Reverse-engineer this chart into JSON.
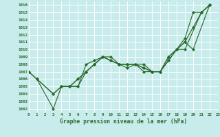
{
  "xlabel": "Graphe pression niveau de la mer (hPa)",
  "bg_color": "#c8ecec",
  "grid_color": "#ffffff",
  "line_color": "#2d6a2d",
  "xlim": [
    0,
    23
  ],
  "ylim": [
    1001.5,
    1016.5
  ],
  "xtick_labels": [
    "0",
    "1",
    "2",
    "3",
    "4",
    "5",
    "6",
    "7",
    "8",
    "9",
    "10",
    "11",
    "12",
    "13",
    "14",
    "15",
    "16",
    "17",
    "18",
    "19",
    "20",
    "21",
    "22",
    "23"
  ],
  "ytick_values": [
    1002,
    1003,
    1004,
    1005,
    1006,
    1007,
    1008,
    1009,
    1010,
    1011,
    1012,
    1013,
    1014,
    1015,
    1016
  ],
  "series": [
    {
      "x": [
        0,
        1,
        3,
        4,
        5,
        6,
        7,
        8,
        9,
        10,
        11,
        12,
        13,
        14,
        15,
        16,
        17,
        18,
        19,
        20,
        21,
        22
      ],
      "y": [
        1007,
        1006,
        1004,
        1005,
        1005,
        1005,
        1008,
        1008.5,
        1009,
        1009,
        1008,
        1008,
        1008,
        1008,
        1007,
        1007,
        1008.5,
        1010,
        1011,
        1013,
        1015,
        1016
      ]
    },
    {
      "x": [
        0,
        1,
        3,
        4,
        5,
        6,
        7,
        8,
        9,
        10,
        11,
        12,
        13,
        14,
        15,
        16,
        17,
        18,
        19,
        20,
        22
      ],
      "y": [
        1007,
        1006,
        1002,
        1005,
        1005,
        1006,
        1007,
        1008,
        1009,
        1008.5,
        1008,
        1008,
        1008,
        1007,
        1007,
        1007,
        1009,
        1010,
        1011,
        1010,
        1016
      ]
    },
    {
      "x": [
        1,
        3,
        4,
        5,
        6,
        7,
        8,
        9,
        10,
        11,
        12,
        13,
        14,
        15,
        16,
        17,
        18,
        19,
        20,
        21,
        22
      ],
      "y": [
        1006,
        1004,
        1005,
        1005,
        1006,
        1007,
        1008,
        1009,
        1008.5,
        1008,
        1008,
        1008,
        1007.5,
        1007,
        1007,
        1009,
        1010,
        1011.5,
        1015,
        1015,
        1016
      ]
    },
    {
      "x": [
        4,
        5,
        6,
        7,
        8,
        9,
        10,
        11,
        12,
        13,
        14,
        15,
        16,
        17,
        18,
        19,
        21,
        22
      ],
      "y": [
        1005,
        1005,
        1005,
        1007,
        1008,
        1009,
        1008.5,
        1008,
        1007.5,
        1008,
        1007.5,
        1007,
        1007,
        1008.5,
        1010,
        1010,
        1015,
        1016
      ]
    }
  ]
}
